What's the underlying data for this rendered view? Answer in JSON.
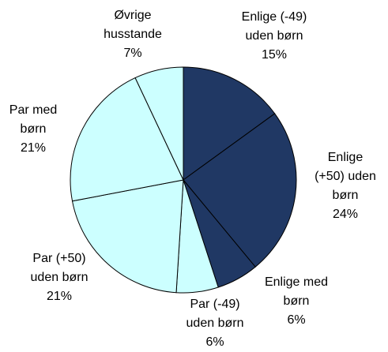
{
  "chart_data": {
    "type": "pie",
    "categories": [
      [
        "Enlige (-49)",
        "uden børn"
      ],
      [
        "Enlige",
        "(+50) uden",
        "børn"
      ],
      [
        "Enlige med",
        "børn"
      ],
      [
        "Par (-49)",
        "uden børn"
      ],
      [
        "Par (+50)",
        "uden børn"
      ],
      [
        "Par med",
        "børn"
      ],
      [
        "Øvrige",
        "husstande"
      ]
    ],
    "values": [
      15,
      24,
      6,
      6,
      21,
      21,
      7
    ],
    "value_labels": [
      "15%",
      "24%",
      "6%",
      "6%",
      "21%",
      "21%",
      "7%"
    ],
    "colors": [
      "#203864",
      "#203864",
      "#203864",
      "#ccffff",
      "#ccffff",
      "#ccffff",
      "#ccffff"
    ]
  }
}
